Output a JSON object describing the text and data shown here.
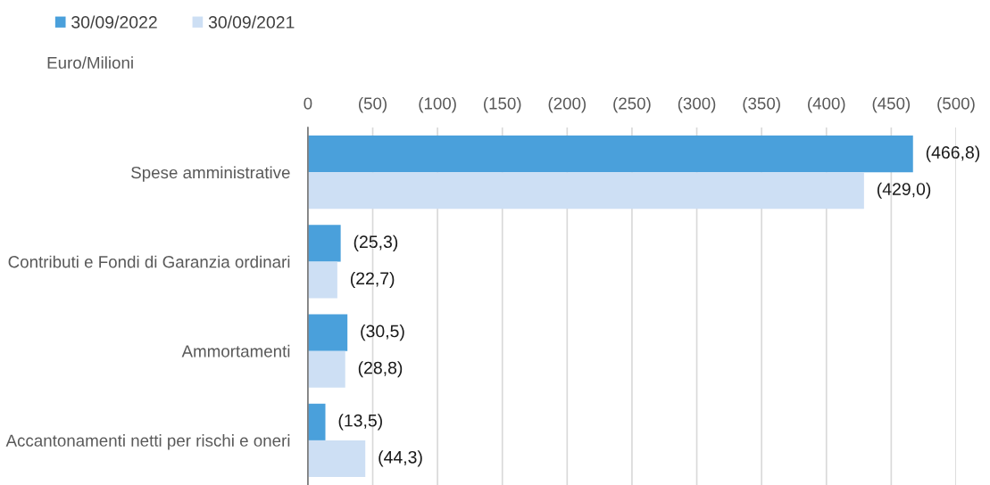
{
  "chart_data": {
    "type": "bar",
    "orientation": "horizontal",
    "categories": [
      "Spese amministrative",
      "Contributi e Fondi di Garanzia ordinari",
      "Ammortamenti",
      "Accantonamenti netti per rischi e oneri"
    ],
    "series": [
      {
        "name": "30/09/2022",
        "color": "#4aa0db",
        "values": [
          -466.8,
          -25.3,
          -30.5,
          -13.5
        ],
        "value_labels": [
          "(466,8)",
          "(25,3)",
          "(30,5)",
          "(13,5)"
        ]
      },
      {
        "name": "30/09/2021",
        "color": "#cddff4",
        "values": [
          -429.0,
          -22.7,
          -28.8,
          -44.3
        ],
        "value_labels": [
          "(429,0)",
          "(22,7)",
          "(28,8)",
          "(44,3)"
        ]
      }
    ],
    "xlim": [
      0,
      -500
    ],
    "xticks": [
      0,
      {
        "value": -50,
        "label": "(50)"
      },
      {
        "value": -100,
        "label": "(100)"
      },
      {
        "value": -150,
        "label": "(150)"
      },
      {
        "value": -200,
        "label": "(200)"
      },
      {
        "value": -250,
        "label": "(250)"
      },
      {
        "value": -300,
        "label": "(300)"
      },
      {
        "value": -350,
        "label": "(350)"
      },
      {
        "value": -400,
        "label": "(400)"
      },
      {
        "value": -450,
        "label": "(450)"
      },
      {
        "value": -500,
        "label": "(500)"
      }
    ],
    "grid": "x",
    "legend": "top left",
    "annotations": [
      "Euro/Milioni"
    ]
  }
}
